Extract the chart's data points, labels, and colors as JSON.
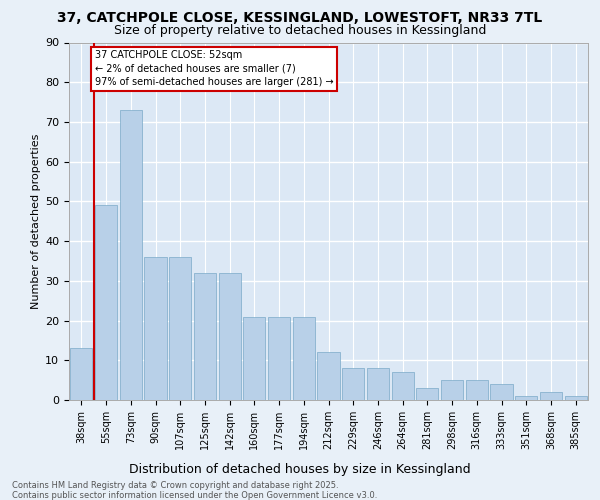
{
  "title_line1": "37, CATCHPOLE CLOSE, KESSINGLAND, LOWESTOFT, NR33 7TL",
  "title_line2": "Size of property relative to detached houses in Kessingland",
  "xlabel": "Distribution of detached houses by size in Kessingland",
  "ylabel": "Number of detached properties",
  "categories": [
    "38sqm",
    "55sqm",
    "73sqm",
    "90sqm",
    "107sqm",
    "125sqm",
    "142sqm",
    "160sqm",
    "177sqm",
    "194sqm",
    "212sqm",
    "229sqm",
    "246sqm",
    "264sqm",
    "281sqm",
    "298sqm",
    "316sqm",
    "333sqm",
    "351sqm",
    "368sqm",
    "385sqm"
  ],
  "values": [
    13,
    49,
    73,
    36,
    36,
    32,
    32,
    21,
    21,
    21,
    12,
    8,
    8,
    7,
    3,
    5,
    5,
    4,
    1,
    2,
    1
  ],
  "bar_color": "#b8d0e8",
  "bar_edge_color": "#7aaac8",
  "annotation_line1": "37 CATCHPOLE CLOSE: 52sqm",
  "annotation_line2": "← 2% of detached houses are smaller (7)",
  "annotation_line3": "97% of semi-detached houses are larger (281) →",
  "annotation_box_color": "#ffffff",
  "annotation_border_color": "#cc0000",
  "vline_color": "#cc0000",
  "footer_text": "Contains HM Land Registry data © Crown copyright and database right 2025.\nContains public sector information licensed under the Open Government Licence v3.0.",
  "ylim": [
    0,
    90
  ],
  "yticks": [
    0,
    10,
    20,
    30,
    40,
    50,
    60,
    70,
    80,
    90
  ],
  "bg_color": "#e8f0f8",
  "plot_bg_color": "#dce8f5",
  "grid_color": "#ffffff",
  "title_fontsize": 10,
  "subtitle_fontsize": 9,
  "annotation_fontsize": 7,
  "ylabel_fontsize": 8,
  "xlabel_fontsize": 9,
  "tick_fontsize": 7
}
